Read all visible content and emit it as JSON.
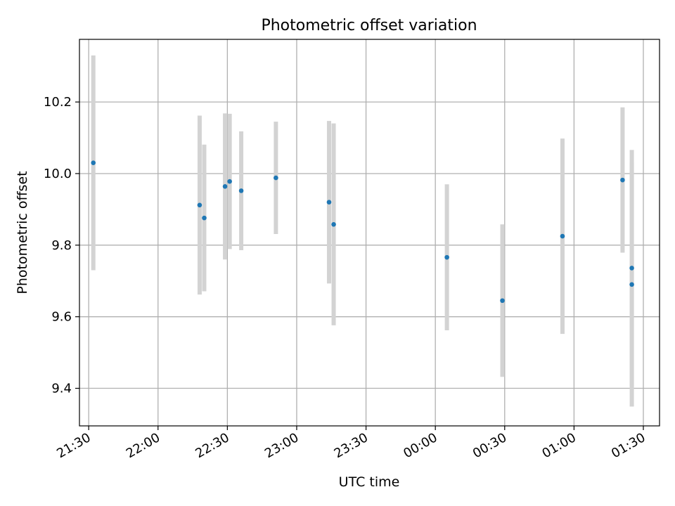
{
  "chart_data": {
    "type": "scatter",
    "title": "Photometric offset variation",
    "xlabel": "UTC time",
    "ylabel": "Photometric offset",
    "grid": true,
    "xlim": [
      "21:26",
      "01:37"
    ],
    "ylim": [
      9.295,
      10.375
    ],
    "x_ticks": [
      "21:30",
      "22:00",
      "22:30",
      "23:00",
      "23:30",
      "00:00",
      "00:30",
      "01:00",
      "01:30"
    ],
    "y_ticks": [
      "9.4",
      "9.6",
      "9.8",
      "10.0",
      "10.2"
    ],
    "colors": {
      "point": "#1f77b4",
      "errorbar": "#d3d3d3",
      "grid": "#b0b0b0"
    },
    "points": [
      {
        "x": "21:32",
        "y": 10.03,
        "yerr": 0.3
      },
      {
        "x": "22:18",
        "y": 9.912,
        "yerr": 0.25
      },
      {
        "x": "22:20",
        "y": 9.876,
        "yerr": 0.205
      },
      {
        "x": "22:29",
        "y": 9.964,
        "yerr": 0.204
      },
      {
        "x": "22:31",
        "y": 9.978,
        "yerr": 0.189
      },
      {
        "x": "22:36",
        "y": 9.952,
        "yerr": 0.166
      },
      {
        "x": "22:51",
        "y": 9.988,
        "yerr": 0.157
      },
      {
        "x": "23:14",
        "y": 9.92,
        "yerr": 0.227
      },
      {
        "x": "23:16",
        "y": 9.858,
        "yerr": 0.282
      },
      {
        "x": "00:05",
        "y": 9.766,
        "yerr": 0.204
      },
      {
        "x": "00:29",
        "y": 9.645,
        "yerr": 0.213
      },
      {
        "x": "00:55",
        "y": 9.825,
        "yerr": 0.273
      },
      {
        "x": "01:21",
        "y": 9.982,
        "yerr": 0.203
      },
      {
        "x": "01:25",
        "y": 9.69,
        "yerr": 0.341
      },
      {
        "x": "01:25",
        "y": 9.736,
        "yerr": 0.33
      }
    ]
  }
}
